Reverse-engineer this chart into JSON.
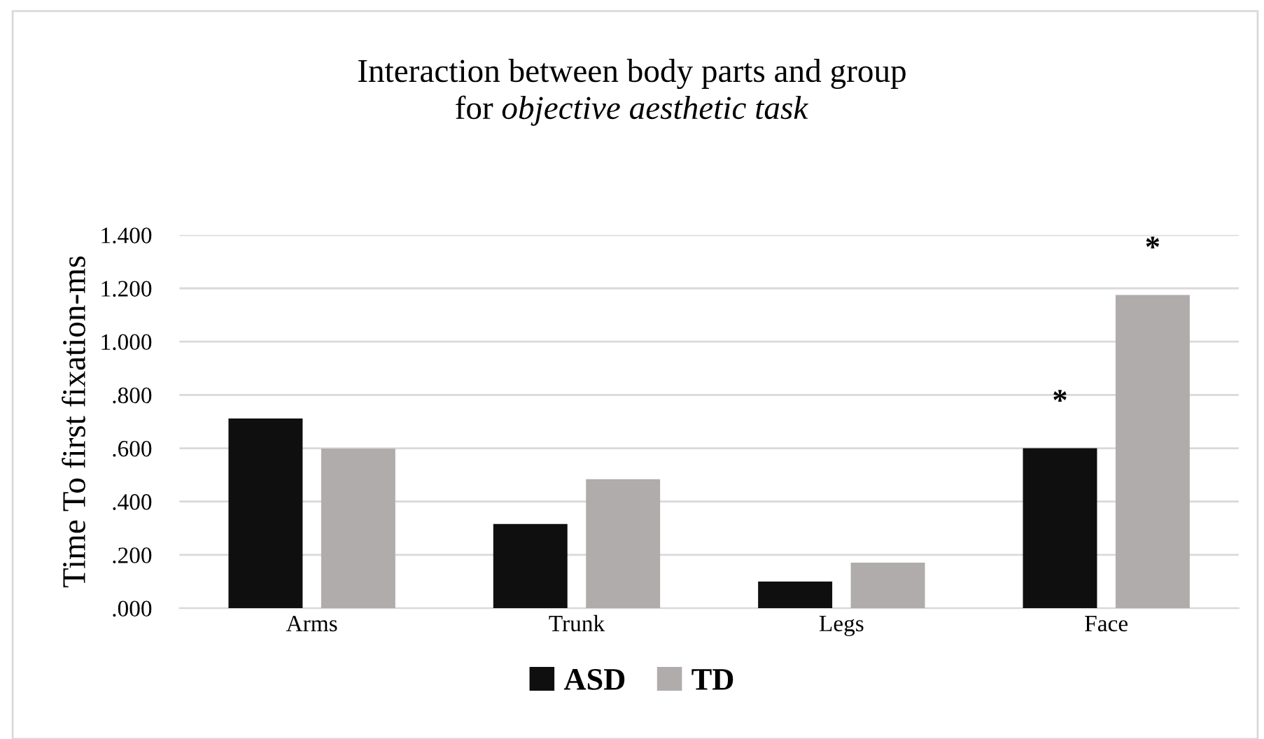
{
  "chart_data": {
    "type": "bar",
    "title": "Interaction between body parts and group\nfor objective aesthetic task",
    "ylabel": "Time To first fixation-ms",
    "categories": [
      "Arms",
      "Trunk",
      "Legs",
      "Face"
    ],
    "series": [
      {
        "name": "ASD",
        "color": "#0f0f0f",
        "values": [
          0.712,
          0.316,
          0.1,
          0.6
        ]
      },
      {
        "name": "TD",
        "color": "#afacab",
        "values": [
          0.599,
          0.484,
          0.171,
          1.175
        ]
      }
    ],
    "ylim": [
      0,
      1.4
    ],
    "yticks": [
      {
        "value": 0,
        "label": ".000"
      },
      {
        "value": 0.2,
        "label": ".200"
      },
      {
        "value": 0.4,
        "label": ".400"
      },
      {
        "value": 0.6,
        "label": ".600"
      },
      {
        "value": 0.8,
        "label": ".800"
      },
      {
        "value": 1.0,
        "label": "1.000"
      },
      {
        "value": 1.2,
        "label": "1.200"
      },
      {
        "value": 1.4,
        "label": "1.400"
      }
    ],
    "grid": "y",
    "legend": "bottom",
    "annotations": [
      "*",
      "*"
    ]
  }
}
